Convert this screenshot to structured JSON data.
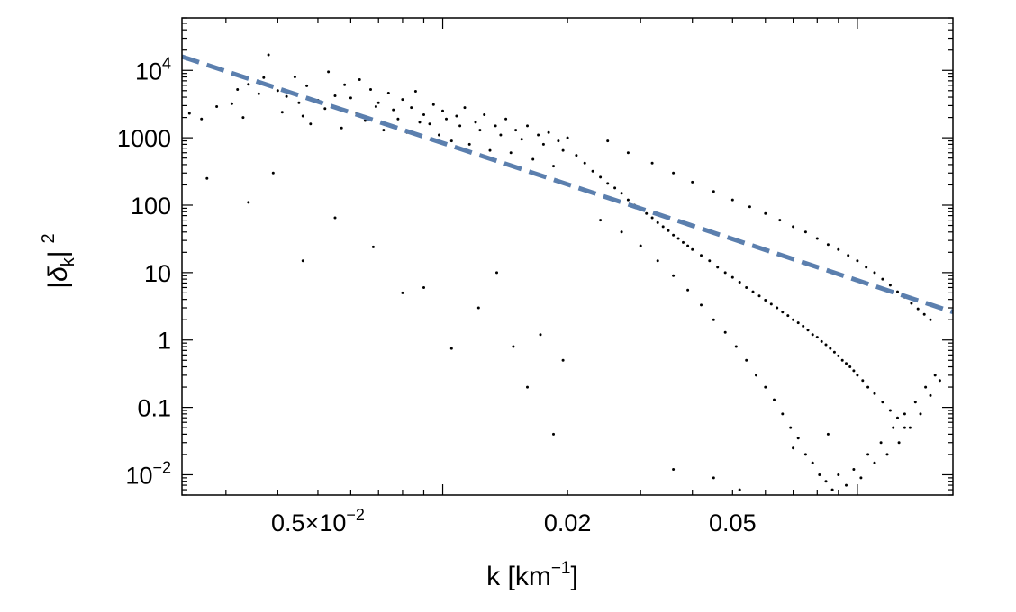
{
  "chart_data": {
    "type": "scatter",
    "x_scale": "log",
    "y_scale": "log",
    "xlim": [
      0.00235,
      0.17
    ],
    "ylim": [
      0.005,
      60000
    ],
    "grid": false,
    "legend": "none",
    "xlabel": {
      "main": "k [km",
      "sup": "−1",
      "close": "]"
    },
    "ylabel": {
      "open": "|",
      "delta": "δ",
      "sub": "k",
      "close": "|",
      "sup": "2"
    },
    "x_ticks": [
      {
        "value": 0.005,
        "mantissa": "0.5",
        "times": "×",
        "base": "10",
        "exp": "−2"
      },
      {
        "value": 0.02,
        "label": "0.02"
      },
      {
        "value": 0.05,
        "label": "0.05"
      }
    ],
    "y_ticks": [
      {
        "value": 10000,
        "base": "10",
        "exp": "4"
      },
      {
        "value": 1000,
        "label": "1000"
      },
      {
        "value": 100,
        "label": "100"
      },
      {
        "value": 10,
        "label": "10"
      },
      {
        "value": 1,
        "label": "1"
      },
      {
        "value": 0.1,
        "label": "0.1"
      },
      {
        "value": 0.01,
        "base": "10",
        "exp": "−2"
      }
    ],
    "fit_line": {
      "style": "dashed",
      "color": "#5b7fae",
      "points": [
        [
          0.00235,
          16000
        ],
        [
          0.17,
          2.6
        ]
      ]
    },
    "point_color": "#000000",
    "points": [
      [
        0.00245,
        2300
      ],
      [
        0.00262,
        1900
      ],
      [
        0.00285,
        2900
      ],
      [
        0.0031,
        3200
      ],
      [
        0.0032,
        5200
      ],
      [
        0.0033,
        2000
      ],
      [
        0.0034,
        6200
      ],
      [
        0.0036,
        4500
      ],
      [
        0.0037,
        7800
      ],
      [
        0.0038,
        17000
      ],
      [
        0.004,
        5000
      ],
      [
        0.0041,
        2400
      ],
      [
        0.0042,
        4100
      ],
      [
        0.0044,
        8000
      ],
      [
        0.0045,
        3300
      ],
      [
        0.0046,
        2100
      ],
      [
        0.0047,
        5900
      ],
      [
        0.0048,
        1600
      ],
      [
        0.005,
        3600
      ],
      [
        0.0052,
        2700
      ],
      [
        0.0053,
        9500
      ],
      [
        0.0055,
        4200
      ],
      [
        0.0057,
        1400
      ],
      [
        0.0058,
        6100
      ],
      [
        0.006,
        3900
      ],
      [
        0.0062,
        2300
      ],
      [
        0.0063,
        7300
      ],
      [
        0.0065,
        1800
      ],
      [
        0.0067,
        5200
      ],
      [
        0.0069,
        2900
      ],
      [
        0.007,
        3300
      ],
      [
        0.0072,
        1300
      ],
      [
        0.0074,
        4600
      ],
      [
        0.0076,
        2600
      ],
      [
        0.0078,
        1900
      ],
      [
        0.008,
        3700
      ],
      [
        0.0082,
        1200
      ],
      [
        0.0084,
        2800
      ],
      [
        0.0086,
        4900
      ],
      [
        0.0088,
        1700
      ],
      [
        0.009,
        2200
      ],
      [
        0.0093,
        1600
      ],
      [
        0.0095,
        3100
      ],
      [
        0.0098,
        1100
      ],
      [
        0.01,
        2500
      ],
      [
        0.0102,
        1900
      ],
      [
        0.0105,
        900
      ],
      [
        0.0108,
        2100
      ],
      [
        0.011,
        1500
      ],
      [
        0.0113,
        2800
      ],
      [
        0.0116,
        800
      ],
      [
        0.012,
        1700
      ],
      [
        0.0123,
        1300
      ],
      [
        0.0126,
        2200
      ],
      [
        0.013,
        650
      ],
      [
        0.0134,
        1500
      ],
      [
        0.0138,
        1100
      ],
      [
        0.0142,
        1900
      ],
      [
        0.0146,
        600
      ],
      [
        0.015,
        1300
      ],
      [
        0.0155,
        950
      ],
      [
        0.016,
        1500
      ],
      [
        0.0165,
        480
      ],
      [
        0.017,
        1100
      ],
      [
        0.0175,
        800
      ],
      [
        0.018,
        1200
      ],
      [
        0.0185,
        380
      ],
      [
        0.019,
        900
      ],
      [
        0.0195,
        650
      ],
      [
        0.02,
        1000
      ],
      [
        0.0027,
        250
      ],
      [
        0.0034,
        110
      ],
      [
        0.0039,
        300
      ],
      [
        0.0046,
        15
      ],
      [
        0.0055,
        65
      ],
      [
        0.0068,
        24
      ],
      [
        0.008,
        5
      ],
      [
        0.009,
        6
      ],
      [
        0.0105,
        0.75
      ],
      [
        0.0122,
        3
      ],
      [
        0.0135,
        10
      ],
      [
        0.0148,
        0.8
      ],
      [
        0.016,
        0.2
      ],
      [
        0.0172,
        1.2
      ],
      [
        0.0185,
        0.04
      ],
      [
        0.0195,
        0.5
      ],
      [
        0.021,
        550
      ],
      [
        0.022,
        420
      ],
      [
        0.023,
        320
      ],
      [
        0.024,
        260
      ],
      [
        0.025,
        210
      ],
      [
        0.026,
        180
      ],
      [
        0.027,
        150
      ],
      [
        0.028,
        120
      ],
      [
        0.029,
        100
      ],
      [
        0.03,
        85
      ],
      [
        0.031,
        75
      ],
      [
        0.032,
        65
      ],
      [
        0.033,
        55
      ],
      [
        0.034,
        48
      ],
      [
        0.035,
        42
      ],
      [
        0.036,
        36
      ],
      [
        0.037,
        32
      ],
      [
        0.038,
        28
      ],
      [
        0.039,
        25
      ],
      [
        0.04,
        22
      ],
      [
        0.042,
        18
      ],
      [
        0.044,
        15
      ],
      [
        0.046,
        12
      ],
      [
        0.048,
        10
      ],
      [
        0.05,
        8.5
      ],
      [
        0.052,
        7.2
      ],
      [
        0.054,
        6
      ],
      [
        0.056,
        5.2
      ],
      [
        0.058,
        4.5
      ],
      [
        0.06,
        3.9
      ],
      [
        0.062,
        3.4
      ],
      [
        0.064,
        3
      ],
      [
        0.066,
        2.6
      ],
      [
        0.068,
        2.3
      ],
      [
        0.07,
        2
      ],
      [
        0.072,
        1.8
      ],
      [
        0.074,
        1.6
      ],
      [
        0.076,
        1.4
      ],
      [
        0.078,
        1.2
      ],
      [
        0.08,
        1.1
      ],
      [
        0.082,
        0.95
      ],
      [
        0.084,
        0.85
      ],
      [
        0.086,
        0.75
      ],
      [
        0.088,
        0.66
      ],
      [
        0.09,
        0.58
      ],
      [
        0.092,
        0.5
      ],
      [
        0.094,
        0.45
      ],
      [
        0.096,
        0.4
      ],
      [
        0.098,
        0.35
      ],
      [
        0.1,
        0.3
      ],
      [
        0.103,
        0.25
      ],
      [
        0.106,
        0.2
      ],
      [
        0.11,
        0.16
      ],
      [
        0.115,
        0.12
      ],
      [
        0.12,
        0.09
      ],
      [
        0.125,
        0.07
      ],
      [
        0.13,
        0.05
      ],
      [
        0.025,
        900
      ],
      [
        0.028,
        600
      ],
      [
        0.032,
        420
      ],
      [
        0.036,
        300
      ],
      [
        0.04,
        220
      ],
      [
        0.045,
        160
      ],
      [
        0.05,
        120
      ],
      [
        0.055,
        95
      ],
      [
        0.06,
        75
      ],
      [
        0.065,
        60
      ],
      [
        0.07,
        48
      ],
      [
        0.075,
        40
      ],
      [
        0.08,
        32
      ],
      [
        0.085,
        26
      ],
      [
        0.09,
        22
      ],
      [
        0.095,
        18
      ],
      [
        0.1,
        15
      ],
      [
        0.105,
        12
      ],
      [
        0.11,
        10
      ],
      [
        0.115,
        8
      ],
      [
        0.12,
        6.5
      ],
      [
        0.125,
        5.2
      ],
      [
        0.13,
        4.3
      ],
      [
        0.135,
        3.5
      ],
      [
        0.14,
        2.9
      ],
      [
        0.145,
        2.4
      ],
      [
        0.15,
        2
      ],
      [
        0.024,
        60
      ],
      [
        0.027,
        40
      ],
      [
        0.03,
        25
      ],
      [
        0.033,
        15
      ],
      [
        0.036,
        9
      ],
      [
        0.039,
        5.5
      ],
      [
        0.042,
        3.3
      ],
      [
        0.045,
        2
      ],
      [
        0.048,
        1.3
      ],
      [
        0.051,
        0.8
      ],
      [
        0.054,
        0.5
      ],
      [
        0.057,
        0.3
      ],
      [
        0.06,
        0.2
      ],
      [
        0.063,
        0.13
      ],
      [
        0.066,
        0.08
      ],
      [
        0.069,
        0.05
      ],
      [
        0.072,
        0.035
      ],
      [
        0.075,
        0.02
      ],
      [
        0.078,
        0.015
      ],
      [
        0.081,
        0.01
      ],
      [
        0.084,
        0.008
      ],
      [
        0.087,
        0.006
      ],
      [
        0.09,
        0.01
      ],
      [
        0.094,
        0.007
      ],
      [
        0.098,
        0.012
      ],
      [
        0.102,
        0.009
      ],
      [
        0.106,
        0.02
      ],
      [
        0.11,
        0.015
      ],
      [
        0.114,
        0.03
      ],
      [
        0.118,
        0.02
      ],
      [
        0.122,
        0.05
      ],
      [
        0.126,
        0.03
      ],
      [
        0.13,
        0.08
      ],
      [
        0.134,
        0.05
      ],
      [
        0.138,
        0.12
      ],
      [
        0.142,
        0.08
      ],
      [
        0.146,
        0.2
      ],
      [
        0.15,
        0.15
      ],
      [
        0.154,
        0.3
      ],
      [
        0.158,
        0.25
      ],
      [
        0.036,
        0.012
      ],
      [
        0.045,
        0.009
      ],
      [
        0.052,
        0.006
      ],
      [
        0.062,
        0.004
      ],
      [
        0.07,
        0.025
      ],
      [
        0.085,
        0.04
      ]
    ]
  }
}
